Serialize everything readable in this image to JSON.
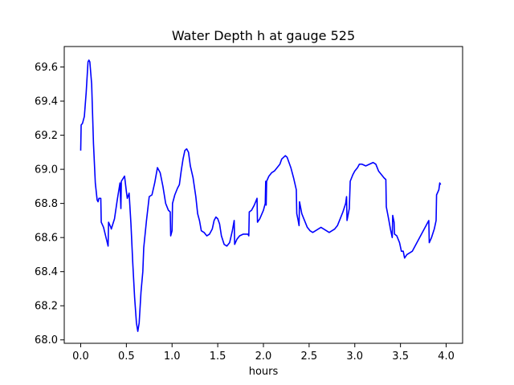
{
  "chart_data": {
    "type": "line",
    "title": "Water Depth h at gauge 525",
    "xlabel": "hours",
    "ylabel": "",
    "xlim": [
      -0.18,
      4.18
    ],
    "ylim": [
      67.98,
      69.72
    ],
    "xticks": [
      0.0,
      0.5,
      1.0,
      1.5,
      2.0,
      2.5,
      3.0,
      3.5,
      4.0
    ],
    "xtick_labels": [
      "0.0",
      "0.5",
      "1.0",
      "1.5",
      "2.0",
      "2.5",
      "3.0",
      "3.5",
      "4.0"
    ],
    "yticks": [
      68.0,
      68.2,
      68.4,
      68.6,
      68.8,
      69.0,
      69.2,
      69.4,
      69.6
    ],
    "ytick_labels": [
      "68.0",
      "68.2",
      "68.4",
      "68.6",
      "68.8",
      "69.0",
      "69.2",
      "69.4",
      "69.6"
    ],
    "grid": false,
    "series": [
      {
        "color": "#0000ff",
        "points": [
          [
            0.0,
            69.11
          ],
          [
            0.005,
            69.26
          ],
          [
            0.02,
            69.27
          ],
          [
            0.04,
            69.31
          ],
          [
            0.06,
            69.45
          ],
          [
            0.08,
            69.63
          ],
          [
            0.09,
            69.64
          ],
          [
            0.1,
            69.63
          ],
          [
            0.12,
            69.5
          ],
          [
            0.14,
            69.15
          ],
          [
            0.16,
            68.92
          ],
          [
            0.18,
            68.82
          ],
          [
            0.19,
            68.81
          ],
          [
            0.2,
            68.83
          ],
          [
            0.22,
            68.83
          ],
          [
            0.225,
            68.69
          ],
          [
            0.25,
            68.66
          ],
          [
            0.3,
            68.55
          ],
          [
            0.305,
            68.69
          ],
          [
            0.33,
            68.66
          ],
          [
            0.335,
            68.65
          ],
          [
            0.37,
            68.71
          ],
          [
            0.4,
            68.82
          ],
          [
            0.43,
            68.92
          ],
          [
            0.44,
            68.77
          ],
          [
            0.445,
            68.93
          ],
          [
            0.48,
            68.96
          ],
          [
            0.5,
            68.87
          ],
          [
            0.51,
            68.83
          ],
          [
            0.53,
            68.86
          ],
          [
            0.55,
            68.68
          ],
          [
            0.57,
            68.45
          ],
          [
            0.59,
            68.25
          ],
          [
            0.61,
            68.1
          ],
          [
            0.625,
            68.05
          ],
          [
            0.64,
            68.1
          ],
          [
            0.66,
            68.28
          ],
          [
            0.68,
            68.4
          ],
          [
            0.69,
            68.54
          ],
          [
            0.72,
            68.7
          ],
          [
            0.75,
            68.84
          ],
          [
            0.78,
            68.85
          ],
          [
            0.81,
            68.92
          ],
          [
            0.84,
            69.01
          ],
          [
            0.87,
            68.98
          ],
          [
            0.9,
            68.9
          ],
          [
            0.93,
            68.8
          ],
          [
            0.96,
            68.76
          ],
          [
            0.98,
            68.75
          ],
          [
            0.985,
            68.61
          ],
          [
            1.0,
            68.64
          ],
          [
            1.005,
            68.8
          ],
          [
            1.03,
            68.85
          ],
          [
            1.06,
            68.89
          ],
          [
            1.08,
            68.91
          ],
          [
            1.1,
            68.99
          ],
          [
            1.12,
            69.06
          ],
          [
            1.14,
            69.11
          ],
          [
            1.16,
            69.12
          ],
          [
            1.18,
            69.1
          ],
          [
            1.2,
            69.02
          ],
          [
            1.23,
            68.95
          ],
          [
            1.26,
            68.84
          ],
          [
            1.28,
            68.74
          ],
          [
            1.3,
            68.7
          ],
          [
            1.32,
            68.64
          ],
          [
            1.35,
            68.63
          ],
          [
            1.38,
            68.61
          ],
          [
            1.41,
            68.62
          ],
          [
            1.44,
            68.65
          ],
          [
            1.46,
            68.7
          ],
          [
            1.48,
            68.72
          ],
          [
            1.5,
            68.71
          ],
          [
            1.52,
            68.68
          ],
          [
            1.54,
            68.61
          ],
          [
            1.57,
            68.56
          ],
          [
            1.6,
            68.55
          ],
          [
            1.63,
            68.57
          ],
          [
            1.66,
            68.64
          ],
          [
            1.68,
            68.7
          ],
          [
            1.685,
            68.56
          ],
          [
            1.71,
            68.59
          ],
          [
            1.74,
            68.61
          ],
          [
            1.78,
            68.62
          ],
          [
            1.83,
            68.62
          ],
          [
            1.84,
            68.61
          ],
          [
            1.845,
            68.75
          ],
          [
            1.87,
            68.76
          ],
          [
            1.9,
            68.79
          ],
          [
            1.93,
            68.83
          ],
          [
            1.935,
            68.69
          ],
          [
            1.96,
            68.71
          ],
          [
            2.0,
            68.76
          ],
          [
            2.02,
            68.8
          ],
          [
            2.025,
            68.93
          ],
          [
            2.03,
            68.79
          ],
          [
            2.035,
            68.93
          ],
          [
            2.06,
            68.96
          ],
          [
            2.09,
            68.98
          ],
          [
            2.12,
            68.99
          ],
          [
            2.15,
            69.01
          ],
          [
            2.18,
            69.03
          ],
          [
            2.2,
            69.06
          ],
          [
            2.22,
            69.07
          ],
          [
            2.24,
            69.08
          ],
          [
            2.26,
            69.07
          ],
          [
            2.28,
            69.04
          ],
          [
            2.3,
            69.01
          ],
          [
            2.33,
            68.95
          ],
          [
            2.36,
            68.88
          ],
          [
            2.365,
            68.74
          ],
          [
            2.38,
            68.7
          ],
          [
            2.39,
            68.67
          ],
          [
            2.395,
            68.81
          ],
          [
            2.42,
            68.74
          ],
          [
            2.45,
            68.7
          ],
          [
            2.48,
            68.66
          ],
          [
            2.51,
            68.64
          ],
          [
            2.54,
            68.63
          ],
          [
            2.57,
            68.64
          ],
          [
            2.6,
            68.65
          ],
          [
            2.63,
            68.66
          ],
          [
            2.66,
            68.65
          ],
          [
            2.69,
            68.64
          ],
          [
            2.72,
            68.63
          ],
          [
            2.75,
            68.64
          ],
          [
            2.78,
            68.65
          ],
          [
            2.81,
            68.67
          ],
          [
            2.84,
            68.71
          ],
          [
            2.87,
            68.75
          ],
          [
            2.9,
            68.8
          ],
          [
            2.91,
            68.84
          ],
          [
            2.915,
            68.7
          ],
          [
            2.94,
            68.77
          ],
          [
            2.95,
            68.93
          ],
          [
            2.98,
            68.97
          ],
          [
            3.0,
            68.99
          ],
          [
            3.03,
            69.01
          ],
          [
            3.05,
            69.03
          ],
          [
            3.08,
            69.03
          ],
          [
            3.12,
            69.02
          ],
          [
            3.16,
            69.03
          ],
          [
            3.2,
            69.04
          ],
          [
            3.23,
            69.03
          ],
          [
            3.26,
            68.99
          ],
          [
            3.29,
            68.97
          ],
          [
            3.32,
            68.95
          ],
          [
            3.34,
            68.94
          ],
          [
            3.345,
            68.78
          ],
          [
            3.37,
            68.71
          ],
          [
            3.39,
            68.65
          ],
          [
            3.41,
            68.6
          ],
          [
            3.415,
            68.73
          ],
          [
            3.43,
            68.69
          ],
          [
            3.435,
            68.62
          ],
          [
            3.46,
            68.61
          ],
          [
            3.49,
            68.57
          ],
          [
            3.51,
            68.52
          ],
          [
            3.53,
            68.52
          ],
          [
            3.545,
            68.48
          ],
          [
            3.57,
            68.5
          ],
          [
            3.6,
            68.51
          ],
          [
            3.63,
            68.52
          ],
          [
            3.66,
            68.55
          ],
          [
            3.7,
            68.59
          ],
          [
            3.74,
            68.63
          ],
          [
            3.78,
            68.67
          ],
          [
            3.81,
            68.7
          ],
          [
            3.815,
            68.57
          ],
          [
            3.84,
            68.6
          ],
          [
            3.87,
            68.65
          ],
          [
            3.89,
            68.7
          ],
          [
            3.895,
            68.85
          ],
          [
            3.92,
            68.88
          ],
          [
            3.93,
            68.92
          ],
          [
            3.94,
            68.91
          ]
        ]
      }
    ]
  }
}
